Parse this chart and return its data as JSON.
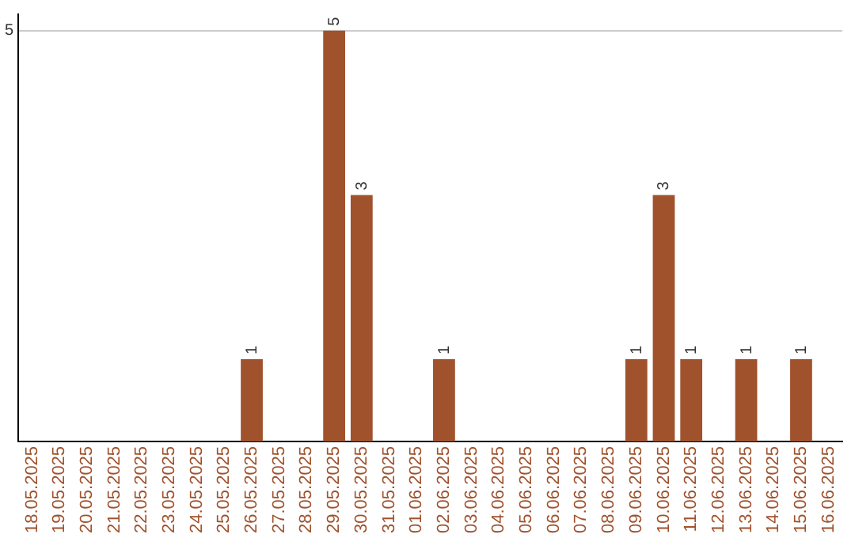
{
  "chart_data": {
    "type": "bar",
    "categories": [
      "18.05.2025",
      "19.05.2025",
      "20.05.2025",
      "21.05.2025",
      "22.05.2025",
      "23.05.2025",
      "24.05.2025",
      "25.05.2025",
      "26.05.2025",
      "27.05.2025",
      "28.05.2025",
      "29.05.2025",
      "30.05.2025",
      "31.05.2025",
      "01.06.2025",
      "02.06.2025",
      "03.06.2025",
      "04.06.2025",
      "05.06.2025",
      "06.06.2025",
      "07.06.2025",
      "08.06.2025",
      "09.06.2025",
      "10.06.2025",
      "11.06.2025",
      "12.06.2025",
      "13.06.2025",
      "14.06.2025",
      "15.06.2025",
      "16.06.2025"
    ],
    "values": [
      0,
      0,
      0,
      0,
      0,
      0,
      0,
      0,
      1,
      0,
      0,
      5,
      3,
      0,
      0,
      1,
      0,
      0,
      0,
      0,
      0,
      0,
      1,
      3,
      1,
      0,
      1,
      0,
      1,
      0
    ],
    "value_labels": [
      null,
      null,
      null,
      null,
      null,
      null,
      null,
      null,
      "1",
      null,
      null,
      "5",
      "3",
      null,
      null,
      "1",
      null,
      null,
      null,
      null,
      null,
      null,
      "1",
      "3",
      "1",
      null,
      "1",
      null,
      "1",
      null
    ],
    "color": "#a0522d",
    "ylim": [
      0,
      5.2
    ],
    "yticks": [
      5
    ],
    "grid": "y",
    "legend": false
  }
}
